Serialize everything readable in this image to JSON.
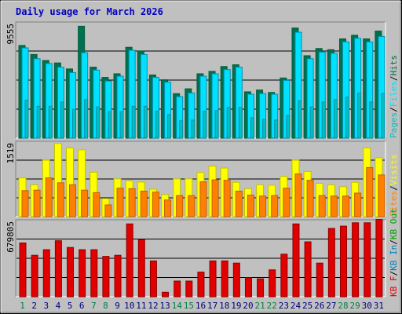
{
  "title": "Daily usage for March 2026",
  "colors": {
    "background": "#c0c0c0",
    "title": "#0000c0",
    "hits": "#007050",
    "hits_dark": "#00603a",
    "files": "#00e0ff",
    "files_dark": "#0090b0",
    "pages": "#00c0c0",
    "visits": "#ffff00",
    "visits_dark": "#c0c000",
    "sites": "#ff8000",
    "sites_dark": "#c06000",
    "kbin": "#0080c0",
    "kbout": "#00a000",
    "kbf": "#e00000",
    "kbf_dark": "#900000",
    "weekend_label": "#008040",
    "weekday_label": "#000080"
  },
  "chart_data": [
    {
      "type": "bar",
      "panel": "hits",
      "title": "Daily usage for March 2026",
      "ylabel_parts": [
        {
          "text": "Pages",
          "color_key": "pages"
        },
        {
          "text": "Files",
          "color_key": "files"
        },
        {
          "text": "Hits",
          "color_key": "hits"
        }
      ],
      "ymax_label": "9555",
      "ylim": [
        0,
        9555
      ],
      "categories": [
        "1",
        "2",
        "3",
        "4",
        "5",
        "6",
        "7",
        "8",
        "9",
        "10",
        "11",
        "12",
        "13",
        "14",
        "15",
        "16",
        "17",
        "18",
        "19",
        "20",
        "21",
        "22",
        "23",
        "24",
        "25",
        "26",
        "27",
        "28",
        "29",
        "30",
        "31"
      ],
      "weekend_days": [
        1,
        7,
        8,
        14,
        15,
        21,
        22,
        28,
        29
      ],
      "series": [
        {
          "name": "Hits",
          "values": [
            7700,
            6950,
            6450,
            6250,
            5750,
            9300,
            5900,
            5050,
            5350,
            7550,
            7250,
            5250,
            4850,
            3700,
            4100,
            5350,
            5550,
            5950,
            6100,
            3850,
            4000,
            3800,
            5000,
            9150,
            6850,
            7450,
            7350,
            8250,
            8550,
            8250,
            8900
          ]
        },
        {
          "name": "Files",
          "values": [
            7500,
            6600,
            6200,
            5900,
            5450,
            7100,
            5650,
            4750,
            5150,
            7300,
            6950,
            5050,
            4650,
            3450,
            3750,
            5150,
            5350,
            5700,
            5900,
            3650,
            3700,
            3650,
            4800,
            8800,
            6600,
            7150,
            7050,
            8000,
            8300,
            8000,
            8450
          ]
        },
        {
          "name": "Pages",
          "values": [
            3150,
            2650,
            2650,
            3000,
            2400,
            3200,
            2600,
            2200,
            2200,
            2650,
            2650,
            2250,
            1950,
            1450,
            1500,
            2250,
            2300,
            2550,
            2550,
            1700,
            1550,
            1500,
            1900,
            3100,
            2600,
            3000,
            3200,
            3400,
            3750,
            3000,
            3700
          ]
        }
      ]
    },
    {
      "type": "bar",
      "panel": "visits",
      "ylabel_parts": [
        {
          "text": "Sites",
          "color_key": "sites"
        },
        {
          "text": "Visits",
          "color_key": "visits"
        }
      ],
      "ymax_label": "1519",
      "ylim": [
        0,
        1519
      ],
      "series": [
        {
          "name": "Visits",
          "values": [
            790,
            650,
            1150,
            1490,
            1400,
            1360,
            905,
            370,
            770,
            730,
            705,
            560,
            450,
            770,
            770,
            900,
            1030,
            990,
            700,
            570,
            650,
            640,
            820,
            1150,
            920,
            680,
            650,
            610,
            700,
            1400,
            1200
          ]
        },
        {
          "name": "Sites",
          "values": [
            530,
            540,
            790,
            690,
            650,
            540,
            490,
            240,
            580,
            570,
            520,
            500,
            340,
            430,
            430,
            710,
            750,
            740,
            520,
            440,
            420,
            430,
            580,
            870,
            740,
            430,
            420,
            420,
            480,
            1000,
            850
          ]
        }
      ]
    },
    {
      "type": "bar",
      "panel": "kbytes",
      "ylabel_parts": [
        {
          "text": "KB F",
          "color_key": "kbf"
        },
        {
          "text": "KB In",
          "color_key": "kbin"
        },
        {
          "text": "KB Out",
          "color_key": "kbout"
        }
      ],
      "ymax_label": "679805",
      "ylim": [
        0,
        679805
      ],
      "series": [
        {
          "name": "KB F",
          "values": [
            480000,
            370000,
            420000,
            500000,
            440000,
            420000,
            420000,
            360000,
            370000,
            650000,
            510000,
            320000,
            40000,
            140000,
            140000,
            220000,
            320000,
            320000,
            300000,
            170000,
            160000,
            240000,
            380000,
            650000,
            490000,
            300000,
            610000,
            630000,
            660000,
            660000,
            690000
          ]
        }
      ]
    }
  ]
}
